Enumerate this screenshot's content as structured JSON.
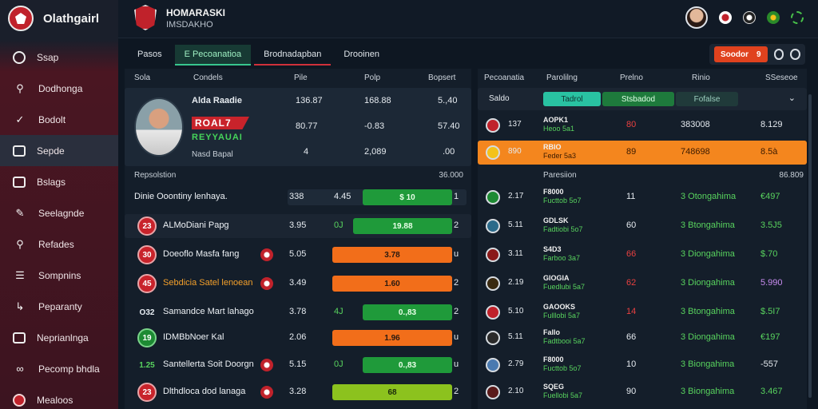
{
  "app": {
    "title": "Olathgairl"
  },
  "sidebar": {
    "items": [
      {
        "label": "Ssap",
        "icon": "circle-icon"
      },
      {
        "label": "Dodhonga",
        "icon": "search-icon"
      },
      {
        "label": "Bodolt",
        "icon": "pin-icon"
      },
      {
        "label": "Sepde",
        "icon": "board-icon"
      },
      {
        "label": "Bslags",
        "icon": "home-icon"
      },
      {
        "label": "Seelagnde",
        "icon": "edit-icon"
      },
      {
        "label": "Refades",
        "icon": "search-icon"
      },
      {
        "label": "Sompnins",
        "icon": "list-icon"
      },
      {
        "label": "Peparanty",
        "icon": "chart-icon"
      },
      {
        "label": "Neprianlnga",
        "icon": "mail-icon"
      },
      {
        "label": "Pecomp bhdla",
        "icon": "link-icon"
      },
      {
        "label": "Mealoos",
        "icon": "club-icon"
      }
    ]
  },
  "header": {
    "team_name": "HOMARASKI",
    "team_sub": "IMSDAKHO"
  },
  "tabs": [
    {
      "label": "Pasos"
    },
    {
      "label": "E Pecoanatioa"
    },
    {
      "label": "Brodnadapban"
    },
    {
      "label": "Drooinen"
    }
  ],
  "tab_actions": {
    "live_label": "Soodor",
    "live_count": "9"
  },
  "left": {
    "headers": [
      "Sola",
      "Condels",
      "Pile",
      "Polp",
      "Bopsert"
    ],
    "featured": {
      "name": "Alda Raadie",
      "goal": "ROAL7",
      "sub": "REYYAUAI",
      "sub2": "Nasd Bapal",
      "v1": "136.87",
      "v2": "168.88",
      "v3": "5.,40",
      "w1": "80.77",
      "w2": "-0.83",
      "w3": "57.40",
      "x1": "4",
      "x2": "2,089",
      "x3": ".00"
    },
    "section": {
      "title": "Repsolstion",
      "value": "36.000"
    },
    "lead_row": {
      "name": "Dinie Ooontiny lenhaya.",
      "v1": "338",
      "v2": "4.45",
      "bar": "$ 10",
      "end": "1"
    },
    "rows": [
      {
        "badge": "23",
        "name": "ALMoDiani Papg",
        "v1": "3.95",
        "v2": "0J",
        "bar": "19.88",
        "end": "2"
      },
      {
        "badge": "30",
        "name": "Doeoflo Masfa fang",
        "v1": "5.05",
        "v2": "",
        "bar": "3.78",
        "end": "u"
      },
      {
        "badge": "45",
        "name": "Sebdicia Satel lenoean",
        "v1": "3.49",
        "v2": "",
        "bar": "1.60",
        "end": "2"
      },
      {
        "badge": "O32",
        "name": "Samandce Mart lahago",
        "v1": "3.78",
        "v2": "4J",
        "bar": "0.,83",
        "end": "2"
      },
      {
        "badge": "19",
        "name": "IDMBbNoer Kal",
        "v1": "2.06",
        "v2": "",
        "bar": "1.96",
        "end": "u"
      },
      {
        "badge": "1.25",
        "name": "Santellerta Soit Doorgn",
        "v1": "5.15",
        "v2": "0J",
        "bar": "0.,83",
        "end": "u"
      },
      {
        "badge": "23",
        "name": "Dlthdloca dod lanaga",
        "v1": "3.28",
        "v2": "",
        "bar": "68",
        "end": "2"
      }
    ]
  },
  "right": {
    "headers": [
      "Pecoanatia",
      "Parolilng",
      "Prelno",
      "Rinio",
      "SSeseoe"
    ],
    "filter": {
      "label": "Saldo",
      "p1": "Tadrol",
      "p2": "Stsbadod",
      "p3": "Fofalse"
    },
    "top_rows": [
      {
        "num": "137",
        "name": "AOPK1",
        "tiny": "Heoo 5a1",
        "v3": "80",
        "v4": "383008",
        "v5": "8.129"
      },
      {
        "num": "890",
        "name": "RBIO",
        "tiny": "Feder 5a3",
        "v3": "89",
        "v4": "748698",
        "v5": "8.5à"
      }
    ],
    "section": {
      "title": "Paresiion",
      "value": "86.809"
    },
    "rows": [
      {
        "num": "2.17",
        "name": "F8000",
        "tiny": "Fucttob 5o7",
        "v3": "11",
        "v4": "3 Otongahima",
        "v5": "€497"
      },
      {
        "num": "5.11",
        "name": "GDLSK",
        "tiny": "Fadtiobi 5o7",
        "v3": "60",
        "v4": "3 Btongahima",
        "v5": "3.5J5"
      },
      {
        "num": "3.11",
        "name": "S4D3",
        "tiny": "Farboo 3a7",
        "v3": "66",
        "v4": "3 Diongahima",
        "v5": "$.70"
      },
      {
        "num": "2.19",
        "name": "GIOGIA",
        "tiny": "Fuedlubi 5a7",
        "v3": "62",
        "v4": "3 Diongahima",
        "v5": "5.990"
      },
      {
        "num": "5.10",
        "name": "GAOOKS",
        "tiny": "Fulllobi 5a7",
        "v3": "14",
        "v4": "3 Btongahima",
        "v5": "$.5I7"
      },
      {
        "num": "5.11",
        "name": "Fallo",
        "tiny": "Fadtbooi 5a7",
        "v3": "66",
        "v4": "3 Diongahima",
        "v5": "€197"
      },
      {
        "num": "2.79",
        "name": "F8000",
        "tiny": "Fucttob 5o7",
        "v3": "10",
        "v4": "3 Biongahima",
        "v5": "-557"
      },
      {
        "num": "2.10",
        "name": "SQEG",
        "tiny": "Fuellobi 5a7",
        "v3": "90",
        "v4": "3 Biongahima",
        "v5": "3.467"
      }
    ]
  }
}
